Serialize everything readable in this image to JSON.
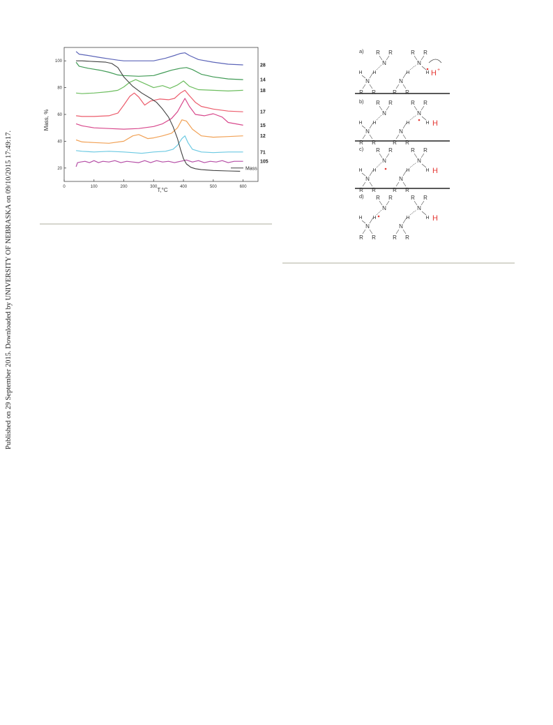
{
  "sidebar_note": "Published on 29 September 2015. Downloaded by UNIVERSITY OF NEBRASKA on 09/10/2015 17:49:17.",
  "chart_data": {
    "type": "line",
    "xlabel": "T,°C",
    "ylabel": "Mass, %",
    "xlim": [
      0,
      650
    ],
    "ylim": [
      10,
      110
    ],
    "xticks": [
      0,
      100,
      200,
      300,
      400,
      500,
      600
    ],
    "yticks": [
      20,
      40,
      60,
      80,
      100
    ],
    "legend": "bottom-right",
    "grid": false,
    "series": [
      {
        "name": "28",
        "color": "#5b64b8",
        "x": [
          40,
          50,
          80,
          120,
          150,
          180,
          200,
          250,
          300,
          340,
          370,
          390,
          405,
          420,
          450,
          500,
          550,
          600
        ],
        "y": [
          107,
          105,
          104,
          102.5,
          101.5,
          100.5,
          100,
          100,
          100,
          102,
          104,
          105.5,
          106,
          104,
          101,
          99,
          97.5,
          97
        ]
      },
      {
        "name": "14",
        "color": "#3f9a54",
        "x": [
          40,
          50,
          80,
          120,
          150,
          180,
          200,
          250,
          300,
          330,
          360,
          390,
          410,
          430,
          460,
          500,
          550,
          600
        ],
        "y": [
          99,
          96,
          94.5,
          93,
          91.5,
          89.5,
          89,
          88.5,
          89,
          91,
          93,
          94.5,
          95,
          93.5,
          90,
          88,
          86.5,
          86
        ]
      },
      {
        "name": "18",
        "color": "#6cbd5e",
        "x": [
          40,
          60,
          100,
          150,
          180,
          200,
          220,
          240,
          270,
          300,
          330,
          355,
          380,
          400,
          420,
          450,
          500,
          550,
          600
        ],
        "y": [
          76,
          75.5,
          76,
          77,
          78,
          80.5,
          84,
          86,
          83,
          80,
          81.5,
          79.5,
          82,
          85,
          81,
          78.5,
          78,
          77.5,
          78
        ]
      },
      {
        "name": "17",
        "color": "#ec5c6c",
        "x": [
          40,
          60,
          100,
          150,
          180,
          200,
          220,
          235,
          250,
          270,
          290,
          320,
          350,
          370,
          390,
          405,
          420,
          440,
          460,
          500,
          550,
          600
        ],
        "y": [
          59,
          58.5,
          58.5,
          59,
          61,
          67,
          73.5,
          76,
          73,
          67,
          70,
          71.5,
          71,
          72,
          76,
          78,
          74,
          69,
          66,
          64,
          62.5,
          62
        ]
      },
      {
        "name": "15",
        "color": "#d8488c",
        "x": [
          40,
          60,
          100,
          150,
          200,
          250,
          300,
          330,
          360,
          380,
          395,
          405,
          420,
          440,
          470,
          500,
          530,
          550,
          600
        ],
        "y": [
          53,
          51.5,
          50,
          49.5,
          49,
          49.5,
          51,
          53,
          57,
          62,
          68,
          72,
          66,
          60,
          59,
          60.5,
          58,
          54,
          52
        ]
      },
      {
        "name": "12",
        "color": "#f1a155",
        "x": [
          40,
          60,
          100,
          150,
          200,
          230,
          250,
          280,
          300,
          330,
          360,
          380,
          395,
          410,
          430,
          460,
          500,
          550,
          600
        ],
        "y": [
          41,
          39.5,
          39,
          38.5,
          40,
          44,
          45,
          42,
          42.5,
          44,
          46,
          50,
          56,
          55,
          49,
          44,
          43,
          43.5,
          44
        ]
      },
      {
        "name": "71",
        "color": "#6bc9e2",
        "x": [
          40,
          60,
          100,
          150,
          200,
          230,
          260,
          300,
          340,
          365,
          380,
          395,
          405,
          415,
          430,
          460,
          500,
          550,
          600
        ],
        "y": [
          33,
          32.5,
          32,
          32.5,
          32,
          31.5,
          31,
          32,
          32.5,
          34,
          37,
          42,
          44,
          39,
          34,
          32,
          31.5,
          32,
          32
        ]
      },
      {
        "name": "105",
        "color": "#b54ea6",
        "x": [
          40,
          45,
          55,
          70,
          85,
          100,
          115,
          130,
          150,
          170,
          190,
          210,
          230,
          250,
          270,
          290,
          310,
          330,
          350,
          370,
          390,
          410,
          430,
          450,
          470,
          490,
          510,
          530,
          550,
          570,
          590,
          600
        ],
        "y": [
          21,
          24,
          24.5,
          25,
          24,
          25.5,
          24,
          25,
          24.5,
          25.5,
          24,
          25,
          24.5,
          24,
          25.5,
          24,
          25.5,
          24.5,
          25,
          24,
          25,
          26,
          24.5,
          25.5,
          24,
          25,
          24.5,
          25.5,
          24,
          25,
          25,
          25
        ]
      },
      {
        "name": "Mass",
        "color": "#404040",
        "x": [
          40,
          60,
          100,
          140,
          160,
          180,
          200,
          230,
          260,
          290,
          310,
          330,
          350,
          365,
          380,
          390,
          400,
          410,
          425,
          440,
          460,
          500,
          550,
          590
        ],
        "y": [
          100,
          100,
          99.5,
          99,
          98,
          95,
          88,
          81,
          76,
          72,
          69,
          64,
          58,
          51,
          42,
          34,
          27,
          23,
          20.5,
          19.5,
          18.8,
          18.2,
          17.8,
          17.6
        ]
      }
    ]
  },
  "scheme": {
    "panels": [
      {
        "label": "a)",
        "proton": "H",
        "charge": "+"
      },
      {
        "label": "b)",
        "proton": "H",
        "charge": "+"
      },
      {
        "label": "c)",
        "proton": "H",
        "charge": "+"
      },
      {
        "label": "d)",
        "proton": "H",
        "charge": "+"
      }
    ],
    "atoms": {
      "R": "R",
      "N": "N",
      "H": "H"
    }
  }
}
